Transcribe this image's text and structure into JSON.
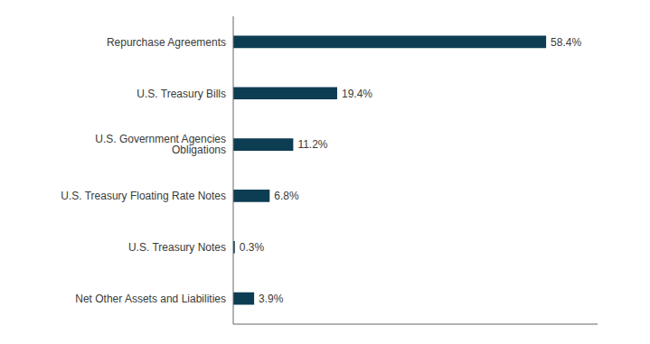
{
  "chart_data": {
    "type": "bar",
    "orientation": "horizontal",
    "categories": [
      "Repurchase Agreements",
      "U.S. Treasury Bills",
      "U.S. Government Agencies Obligations",
      "U.S. Treasury Floating Rate Notes",
      "U.S. Treasury Notes",
      "Net Other Assets and Liabilities"
    ],
    "values": [
      58.4,
      19.4,
      11.2,
      6.8,
      0.3,
      3.9
    ],
    "value_labels": [
      "58.4%",
      "19.4%",
      "11.2%",
      "6.8%",
      "0.3%",
      "3.9%"
    ],
    "data_labels": true,
    "color": "#0d3d52",
    "xlim": [
      0,
      68
    ],
    "grid": false,
    "tick_labels": "y"
  }
}
